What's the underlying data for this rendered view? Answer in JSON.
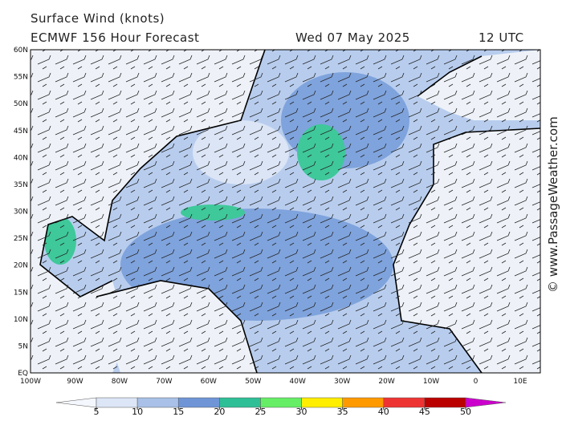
{
  "header": {
    "title": "Surface Wind (knots)",
    "subtitle": "ECMWF 156 Hour Forecast",
    "date": "Wed 07 May 2025",
    "time": "12 UTC"
  },
  "map": {
    "lat_labels": [
      "60N",
      "55N",
      "50N",
      "45N",
      "40N",
      "35N",
      "30N",
      "25N",
      "20N",
      "15N",
      "10N",
      "5N",
      "EQ"
    ],
    "lon_labels": [
      "100W",
      "90W",
      "80W",
      "70W",
      "60W",
      "50W",
      "40W",
      "30W",
      "20W",
      "10W",
      "0",
      "10E"
    ]
  },
  "colorbar": {
    "ticks": [
      5,
      10,
      15,
      20,
      25,
      30,
      35,
      40,
      45,
      50
    ],
    "colors": [
      "#f4f7fd",
      "#dde6f6",
      "#a9c1e8",
      "#6f95d6",
      "#2fbf96",
      "#66ee66",
      "#ffee00",
      "#ff9900",
      "#ee3333",
      "#bb0000",
      "#cc00cc"
    ]
  },
  "credit": "© www.PassageWeather.com"
}
